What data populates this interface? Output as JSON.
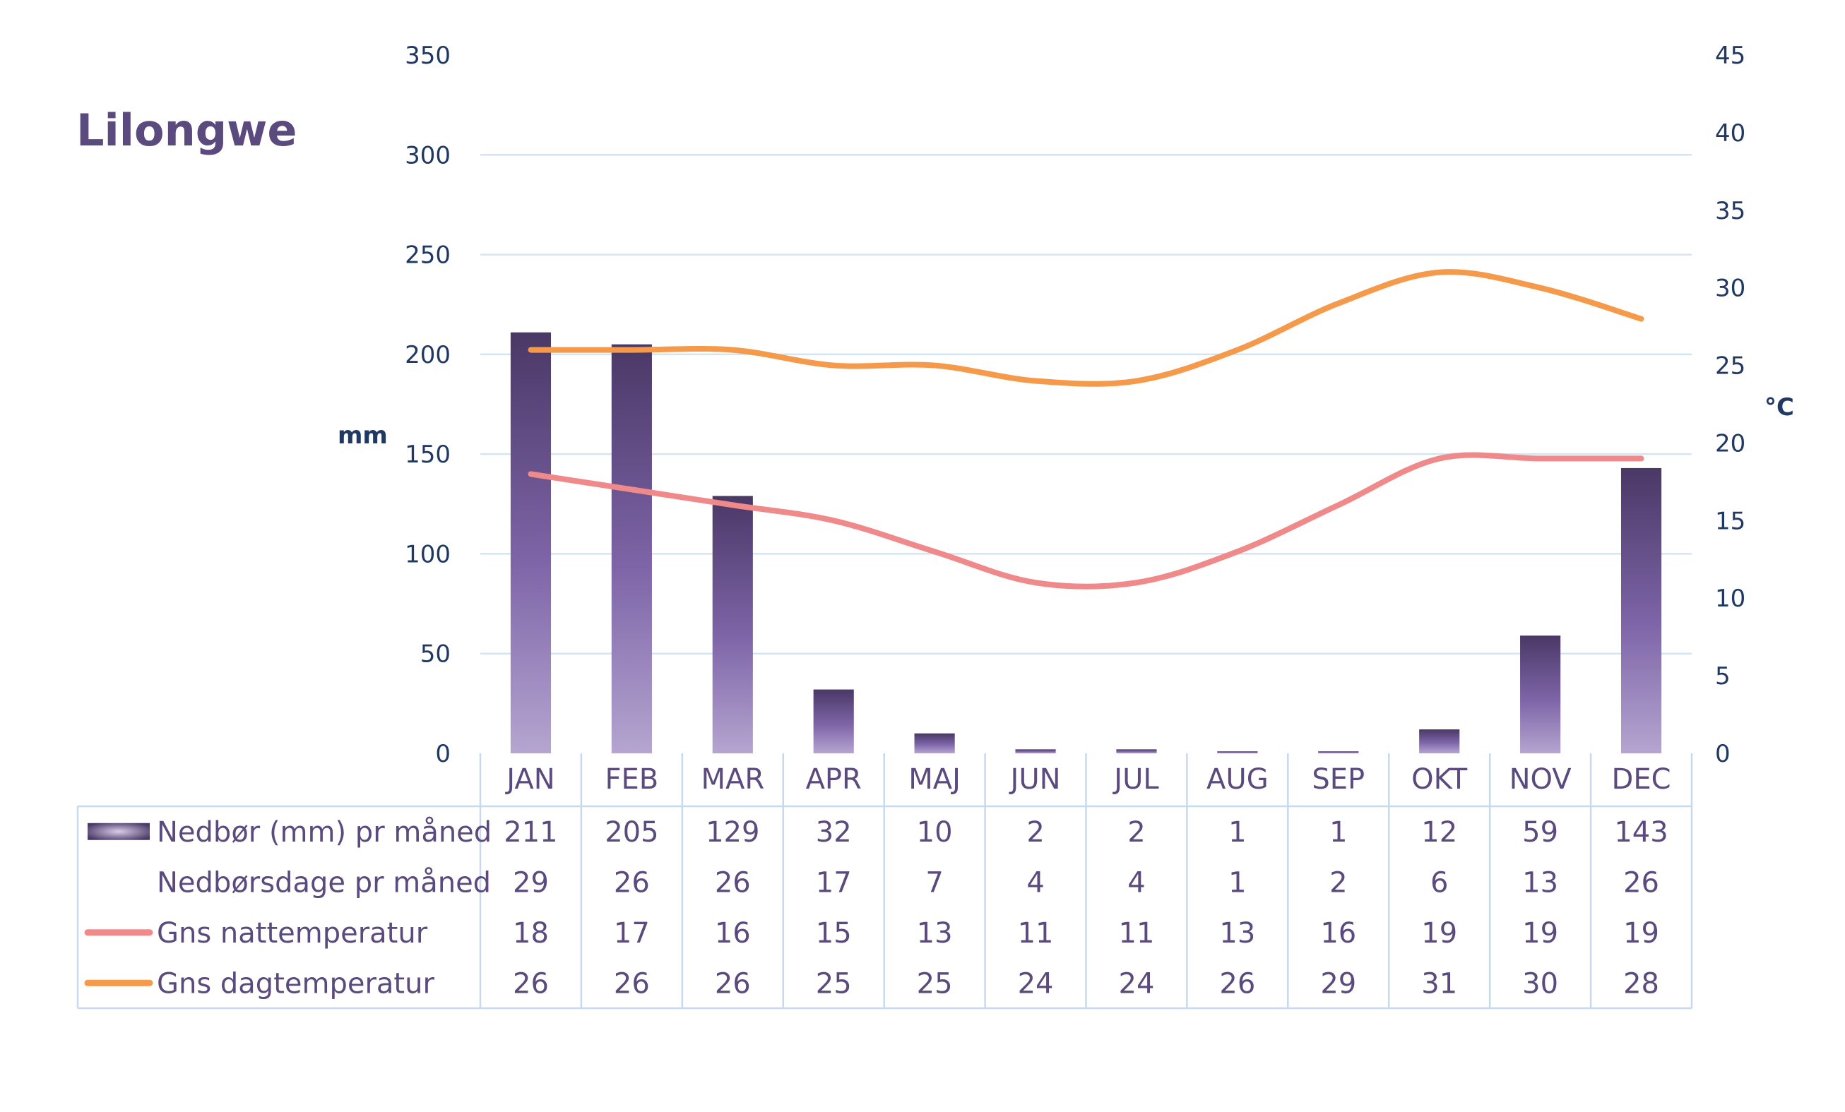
{
  "chart_data": {
    "type": "bar",
    "title": "Lilongwe",
    "categories": [
      "JAN",
      "FEB",
      "MAR",
      "APR",
      "MAJ",
      "JUN",
      "JUL",
      "AUG",
      "SEP",
      "OKT",
      "NOV",
      "DEC"
    ],
    "y_left": {
      "unit": "mm",
      "range": [
        0,
        350
      ],
      "ticks": [
        "0",
        "50",
        "100",
        "150",
        "200",
        "250",
        "300",
        "350"
      ]
    },
    "y_right": {
      "unit": "°C",
      "range": [
        0,
        45
      ],
      "ticks": [
        "0",
        "5",
        "10",
        "15",
        "20",
        "25",
        "30",
        "35",
        "40",
        "45"
      ]
    },
    "grid": true,
    "series": [
      {
        "name": "Nedbør (mm) pr måned",
        "kind": "bar",
        "axis": "left",
        "color": "#6b5690",
        "values": [
          211,
          205,
          129,
          32,
          10,
          2,
          2,
          1,
          1,
          12,
          59,
          143
        ]
      },
      {
        "name": "Nedbørsdage pr måned",
        "kind": "table",
        "values": [
          29,
          26,
          26,
          17,
          7,
          4,
          4,
          1,
          2,
          6,
          13,
          26
        ]
      },
      {
        "name": "Gns nattemperatur",
        "kind": "line",
        "axis": "right",
        "color": "#f08a8a",
        "values": [
          18,
          17,
          16,
          15,
          13,
          11,
          11,
          13,
          16,
          19,
          19,
          19
        ]
      },
      {
        "name": "Gns dagtemperatur",
        "kind": "line",
        "axis": "right",
        "color": "#f5994a",
        "values": [
          26,
          26,
          26,
          25,
          25,
          24,
          24,
          26,
          29,
          31,
          30,
          28
        ]
      }
    ]
  }
}
